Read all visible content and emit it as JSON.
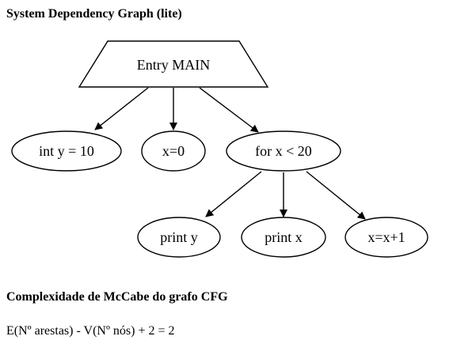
{
  "page": {
    "title": "System Dependency Graph (lite)"
  },
  "graph": {
    "nodes": [
      {
        "id": "entry",
        "label": "Entry MAIN",
        "shape": "trapezium"
      },
      {
        "id": "n1",
        "label": "int y = 10",
        "shape": "ellipse"
      },
      {
        "id": "n2",
        "label": "x=0",
        "shape": "ellipse"
      },
      {
        "id": "n3",
        "label": "for x < 20",
        "shape": "ellipse"
      },
      {
        "id": "n4",
        "label": "print y",
        "shape": "ellipse"
      },
      {
        "id": "n5",
        "label": "print x",
        "shape": "ellipse"
      },
      {
        "id": "n6",
        "label": "x=x+1",
        "shape": "ellipse"
      }
    ],
    "edges": [
      {
        "from": "entry",
        "to": "n1"
      },
      {
        "from": "entry",
        "to": "n2"
      },
      {
        "from": "entry",
        "to": "n3"
      },
      {
        "from": "n3",
        "to": "n4"
      },
      {
        "from": "n3",
        "to": "n5"
      },
      {
        "from": "n3",
        "to": "n6"
      }
    ],
    "stroke_color": "#000000"
  },
  "complexity": {
    "heading": "Complexidade de McCabe do grafo CFG",
    "formula": "E(Nº arestas) - V(Nº nós) + 2 = 2"
  }
}
